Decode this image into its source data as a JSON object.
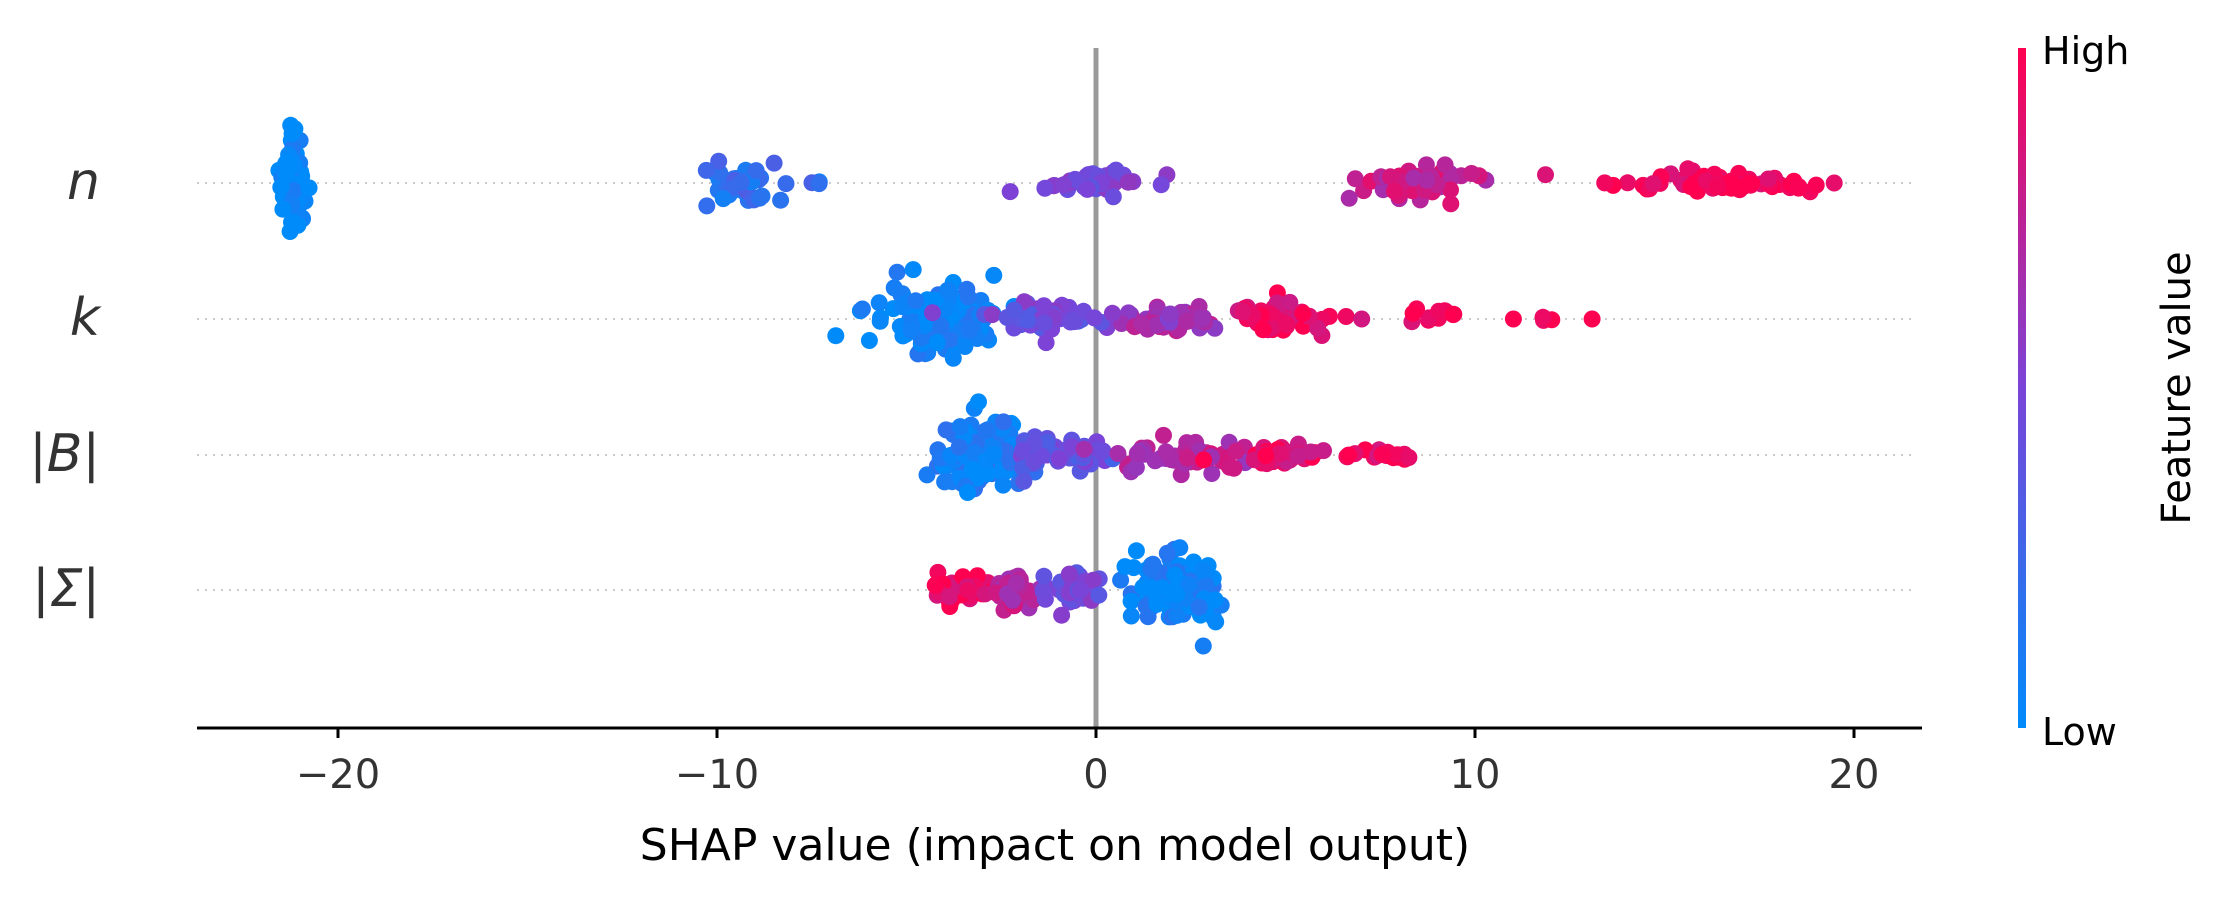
{
  "chart_data": {
    "type": "scatter",
    "subtype": "shap-beeswarm",
    "title": "",
    "xlabel": "SHAP value (impact on model output)",
    "ylabel": "",
    "xlim": [
      -24,
      21.5
    ],
    "xticks": [
      -20,
      -10,
      0,
      10,
      20
    ],
    "xtick_labels": [
      "−20",
      "−10",
      "0",
      "10",
      "20"
    ],
    "zero_line": 0,
    "features": [
      {
        "name": "n",
        "label": "n",
        "clusters": [
          {
            "center": -21.2,
            "spread": 0.35,
            "count": 60,
            "height": 0.8,
            "color_value": 0.0
          },
          {
            "center": -9.5,
            "spread": 1.0,
            "count": 40,
            "height": 0.3,
            "color_value": 0.2
          },
          {
            "center": -7.4,
            "spread": 0.2,
            "count": 3,
            "height": 0.05,
            "color_value": 0.2
          },
          {
            "center": 0.0,
            "spread": 1.3,
            "count": 45,
            "height": 0.25,
            "color_value": 0.5
          },
          {
            "center": 8.6,
            "spread": 1.5,
            "count": 55,
            "height": 0.25,
            "color_value": 0.78
          },
          {
            "center": 16.1,
            "spread": 2.5,
            "count": 65,
            "height": 0.18,
            "color_value": 0.97
          },
          {
            "center": 19.5,
            "spread": 0.05,
            "count": 1,
            "height": 0.0,
            "color_value": 1.0
          }
        ]
      },
      {
        "name": "k",
        "label": "k",
        "clusters": [
          {
            "center": -4.3,
            "spread": 1.8,
            "count": 130,
            "height": 0.55,
            "color_value": 0.05
          },
          {
            "center": -1.5,
            "spread": 1.4,
            "count": 60,
            "height": 0.25,
            "color_value": 0.45
          },
          {
            "center": 1.8,
            "spread": 1.6,
            "count": 55,
            "height": 0.2,
            "color_value": 0.65
          },
          {
            "center": 4.8,
            "spread": 1.3,
            "count": 50,
            "height": 0.3,
            "color_value": 0.9
          },
          {
            "center": 7.0,
            "spread": 0.15,
            "count": 1,
            "height": 0.0,
            "color_value": 0.95
          },
          {
            "center": 8.8,
            "spread": 0.6,
            "count": 12,
            "height": 0.1,
            "color_value": 0.97
          },
          {
            "center": 11.0,
            "spread": 0.05,
            "count": 1,
            "height": 0.0,
            "color_value": 0.98
          },
          {
            "center": 11.9,
            "spread": 0.2,
            "count": 3,
            "height": 0.05,
            "color_value": 0.98
          },
          {
            "center": 13.1,
            "spread": 0.05,
            "count": 1,
            "height": 0.0,
            "color_value": 0.98
          }
        ]
      },
      {
        "name": "abs_B",
        "label": "|B|",
        "clusters": [
          {
            "center": -3.0,
            "spread": 1.3,
            "count": 130,
            "height": 0.55,
            "color_value": 0.08
          },
          {
            "center": -0.9,
            "spread": 1.3,
            "count": 60,
            "height": 0.25,
            "color_value": 0.4
          },
          {
            "center": 2.2,
            "spread": 1.6,
            "count": 55,
            "height": 0.25,
            "color_value": 0.72
          },
          {
            "center": 5.0,
            "spread": 1.3,
            "count": 45,
            "height": 0.18,
            "color_value": 0.9
          },
          {
            "center": 7.6,
            "spread": 1.1,
            "count": 18,
            "height": 0.08,
            "color_value": 0.95
          }
        ]
      },
      {
        "name": "abs_Sigma",
        "label": "|Σ|",
        "clusters": [
          {
            "center": -3.6,
            "spread": 0.9,
            "count": 50,
            "height": 0.2,
            "color_value": 0.95
          },
          {
            "center": -2.1,
            "spread": 0.6,
            "count": 40,
            "height": 0.3,
            "color_value": 0.75
          },
          {
            "center": -0.5,
            "spread": 0.7,
            "count": 35,
            "height": 0.35,
            "color_value": 0.45
          },
          {
            "center": 2.1,
            "spread": 1.1,
            "count": 110,
            "height": 0.55,
            "color_value": 0.05
          }
        ]
      }
    ],
    "colorbar": {
      "label": "Feature value",
      "high_label": "High",
      "low_label": "Low",
      "color_low": "#008bfb",
      "color_mid": "#7a44d8",
      "color_high": "#ff0051"
    },
    "colors": {
      "axis": "#333333",
      "zero_line": "#999999",
      "guide": "#cccccc"
    }
  }
}
